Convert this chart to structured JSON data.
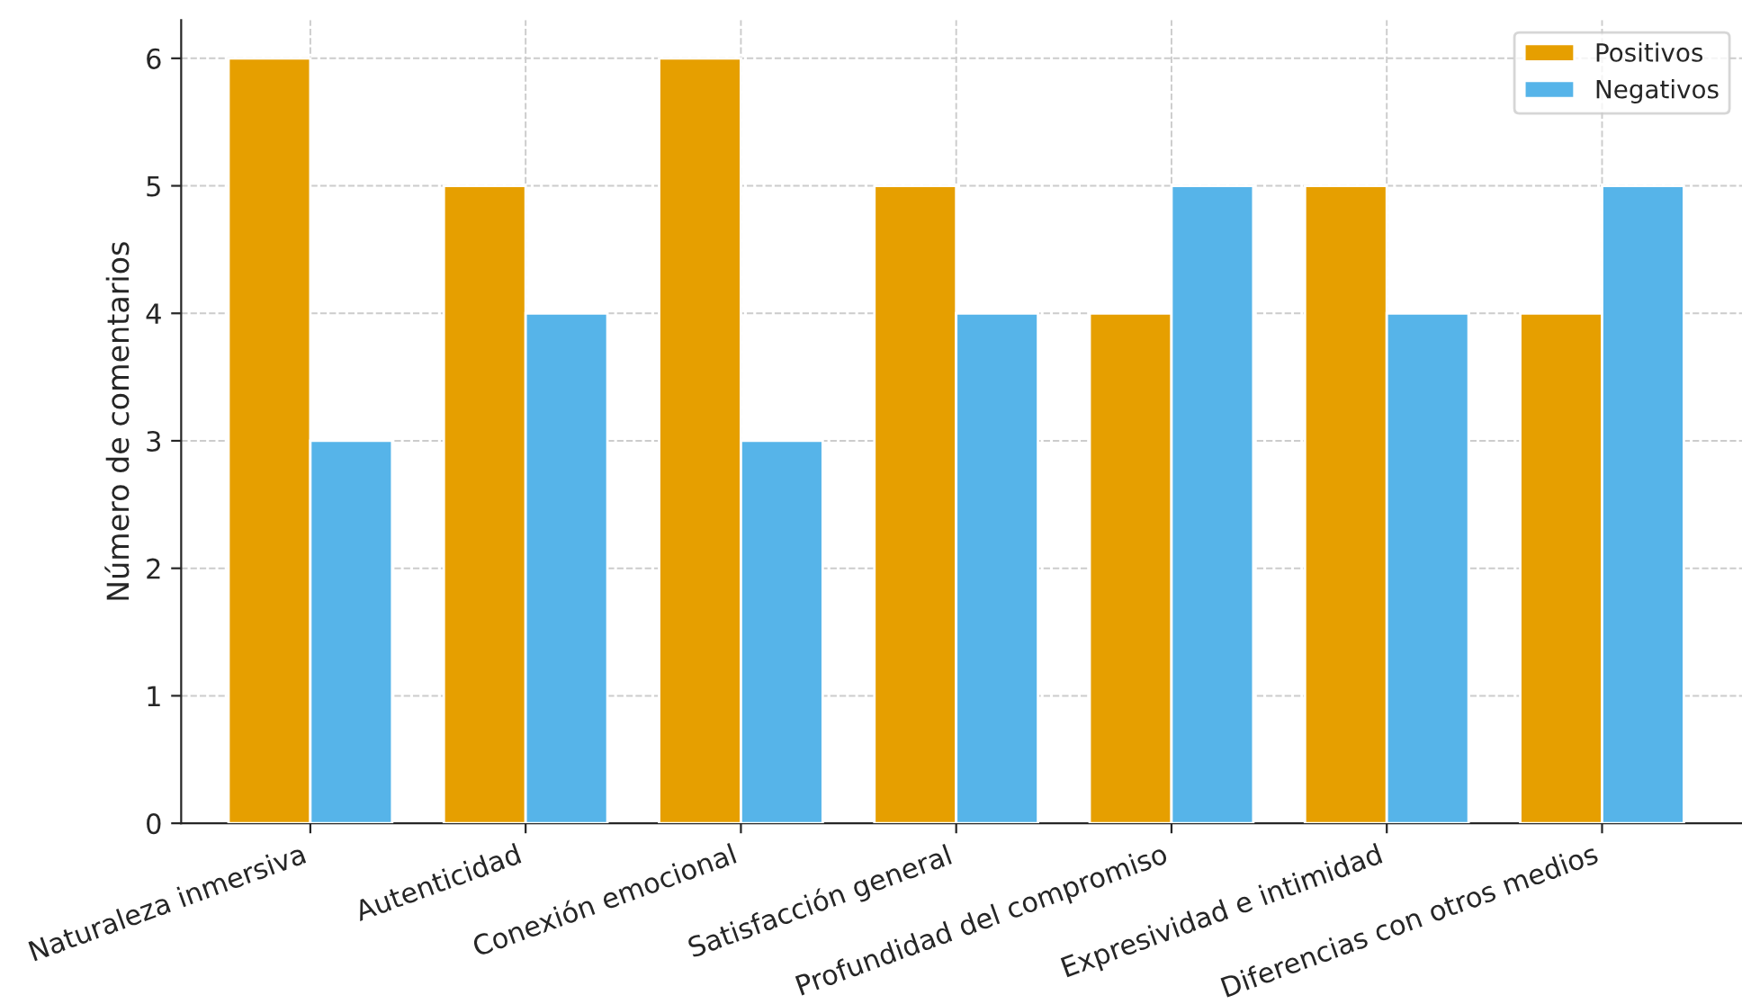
{
  "chart_data": {
    "type": "bar",
    "ylabel": "Número de comentarios",
    "categories": [
      "Naturaleza inmersiva",
      "Autenticidad",
      "Conexión emocional",
      "Satisfacción general",
      "Profundidad del compromiso",
      "Expresividad e intimidad",
      "Diferencias con otros medios"
    ],
    "series": [
      {
        "name": "Positivos",
        "color": "#e69f00",
        "values": [
          6,
          5,
          6,
          5,
          4,
          5,
          4
        ]
      },
      {
        "name": "Negativos",
        "color": "#56b4e9",
        "values": [
          3,
          4,
          3,
          4,
          5,
          4,
          5
        ]
      }
    ],
    "ylim": [
      0,
      6.3
    ],
    "yticks": [
      0,
      1,
      2,
      3,
      4,
      5,
      6
    ],
    "grid": true,
    "legend": "top right"
  }
}
